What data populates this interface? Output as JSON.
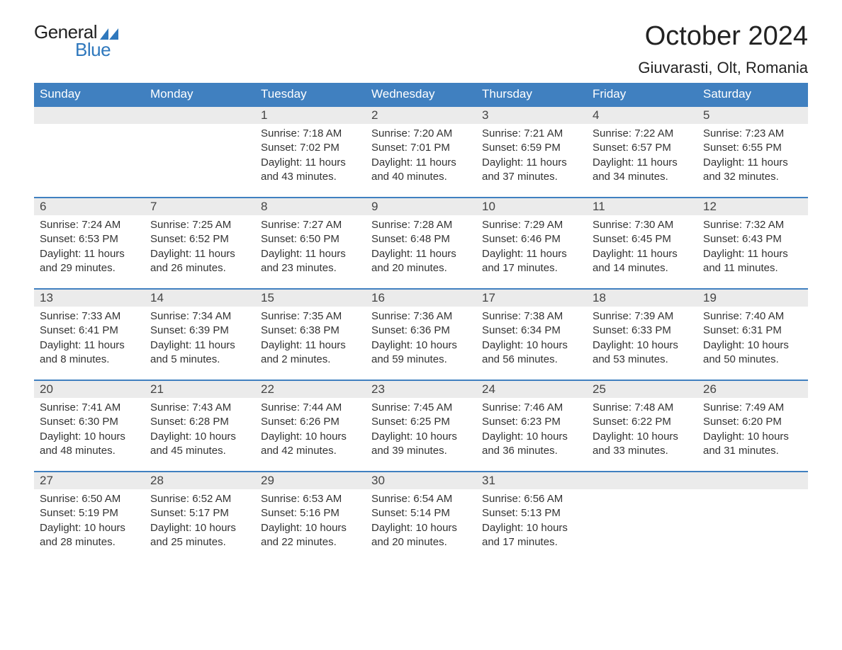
{
  "header": {
    "logo_general": "General",
    "logo_blue": "Blue",
    "month_title": "October 2024",
    "location": "Giuvarasti, Olt, Romania"
  },
  "styling": {
    "header_bg": "#4080c0",
    "header_text": "#ffffff",
    "daynum_bg": "#ebebeb",
    "daynum_border": "#4080c0",
    "body_bg": "#ffffff",
    "text_color": "#333333",
    "logo_blue_color": "#2f78bd",
    "title_fontsize": 38,
    "location_fontsize": 22,
    "dayheader_fontsize": 17,
    "cell_fontsize": 15
  },
  "weekdays": [
    "Sunday",
    "Monday",
    "Tuesday",
    "Wednesday",
    "Thursday",
    "Friday",
    "Saturday"
  ],
  "weeks": [
    [
      {
        "day": "",
        "sunrise": "",
        "sunset": "",
        "daylight": ""
      },
      {
        "day": "",
        "sunrise": "",
        "sunset": "",
        "daylight": ""
      },
      {
        "day": "1",
        "sunrise": "Sunrise: 7:18 AM",
        "sunset": "Sunset: 7:02 PM",
        "daylight": "Daylight: 11 hours and 43 minutes."
      },
      {
        "day": "2",
        "sunrise": "Sunrise: 7:20 AM",
        "sunset": "Sunset: 7:01 PM",
        "daylight": "Daylight: 11 hours and 40 minutes."
      },
      {
        "day": "3",
        "sunrise": "Sunrise: 7:21 AM",
        "sunset": "Sunset: 6:59 PM",
        "daylight": "Daylight: 11 hours and 37 minutes."
      },
      {
        "day": "4",
        "sunrise": "Sunrise: 7:22 AM",
        "sunset": "Sunset: 6:57 PM",
        "daylight": "Daylight: 11 hours and 34 minutes."
      },
      {
        "day": "5",
        "sunrise": "Sunrise: 7:23 AM",
        "sunset": "Sunset: 6:55 PM",
        "daylight": "Daylight: 11 hours and 32 minutes."
      }
    ],
    [
      {
        "day": "6",
        "sunrise": "Sunrise: 7:24 AM",
        "sunset": "Sunset: 6:53 PM",
        "daylight": "Daylight: 11 hours and 29 minutes."
      },
      {
        "day": "7",
        "sunrise": "Sunrise: 7:25 AM",
        "sunset": "Sunset: 6:52 PM",
        "daylight": "Daylight: 11 hours and 26 minutes."
      },
      {
        "day": "8",
        "sunrise": "Sunrise: 7:27 AM",
        "sunset": "Sunset: 6:50 PM",
        "daylight": "Daylight: 11 hours and 23 minutes."
      },
      {
        "day": "9",
        "sunrise": "Sunrise: 7:28 AM",
        "sunset": "Sunset: 6:48 PM",
        "daylight": "Daylight: 11 hours and 20 minutes."
      },
      {
        "day": "10",
        "sunrise": "Sunrise: 7:29 AM",
        "sunset": "Sunset: 6:46 PM",
        "daylight": "Daylight: 11 hours and 17 minutes."
      },
      {
        "day": "11",
        "sunrise": "Sunrise: 7:30 AM",
        "sunset": "Sunset: 6:45 PM",
        "daylight": "Daylight: 11 hours and 14 minutes."
      },
      {
        "day": "12",
        "sunrise": "Sunrise: 7:32 AM",
        "sunset": "Sunset: 6:43 PM",
        "daylight": "Daylight: 11 hours and 11 minutes."
      }
    ],
    [
      {
        "day": "13",
        "sunrise": "Sunrise: 7:33 AM",
        "sunset": "Sunset: 6:41 PM",
        "daylight": "Daylight: 11 hours and 8 minutes."
      },
      {
        "day": "14",
        "sunrise": "Sunrise: 7:34 AM",
        "sunset": "Sunset: 6:39 PM",
        "daylight": "Daylight: 11 hours and 5 minutes."
      },
      {
        "day": "15",
        "sunrise": "Sunrise: 7:35 AM",
        "sunset": "Sunset: 6:38 PM",
        "daylight": "Daylight: 11 hours and 2 minutes."
      },
      {
        "day": "16",
        "sunrise": "Sunrise: 7:36 AM",
        "sunset": "Sunset: 6:36 PM",
        "daylight": "Daylight: 10 hours and 59 minutes."
      },
      {
        "day": "17",
        "sunrise": "Sunrise: 7:38 AM",
        "sunset": "Sunset: 6:34 PM",
        "daylight": "Daylight: 10 hours and 56 minutes."
      },
      {
        "day": "18",
        "sunrise": "Sunrise: 7:39 AM",
        "sunset": "Sunset: 6:33 PM",
        "daylight": "Daylight: 10 hours and 53 minutes."
      },
      {
        "day": "19",
        "sunrise": "Sunrise: 7:40 AM",
        "sunset": "Sunset: 6:31 PM",
        "daylight": "Daylight: 10 hours and 50 minutes."
      }
    ],
    [
      {
        "day": "20",
        "sunrise": "Sunrise: 7:41 AM",
        "sunset": "Sunset: 6:30 PM",
        "daylight": "Daylight: 10 hours and 48 minutes."
      },
      {
        "day": "21",
        "sunrise": "Sunrise: 7:43 AM",
        "sunset": "Sunset: 6:28 PM",
        "daylight": "Daylight: 10 hours and 45 minutes."
      },
      {
        "day": "22",
        "sunrise": "Sunrise: 7:44 AM",
        "sunset": "Sunset: 6:26 PM",
        "daylight": "Daylight: 10 hours and 42 minutes."
      },
      {
        "day": "23",
        "sunrise": "Sunrise: 7:45 AM",
        "sunset": "Sunset: 6:25 PM",
        "daylight": "Daylight: 10 hours and 39 minutes."
      },
      {
        "day": "24",
        "sunrise": "Sunrise: 7:46 AM",
        "sunset": "Sunset: 6:23 PM",
        "daylight": "Daylight: 10 hours and 36 minutes."
      },
      {
        "day": "25",
        "sunrise": "Sunrise: 7:48 AM",
        "sunset": "Sunset: 6:22 PM",
        "daylight": "Daylight: 10 hours and 33 minutes."
      },
      {
        "day": "26",
        "sunrise": "Sunrise: 7:49 AM",
        "sunset": "Sunset: 6:20 PM",
        "daylight": "Daylight: 10 hours and 31 minutes."
      }
    ],
    [
      {
        "day": "27",
        "sunrise": "Sunrise: 6:50 AM",
        "sunset": "Sunset: 5:19 PM",
        "daylight": "Daylight: 10 hours and 28 minutes."
      },
      {
        "day": "28",
        "sunrise": "Sunrise: 6:52 AM",
        "sunset": "Sunset: 5:17 PM",
        "daylight": "Daylight: 10 hours and 25 minutes."
      },
      {
        "day": "29",
        "sunrise": "Sunrise: 6:53 AM",
        "sunset": "Sunset: 5:16 PM",
        "daylight": "Daylight: 10 hours and 22 minutes."
      },
      {
        "day": "30",
        "sunrise": "Sunrise: 6:54 AM",
        "sunset": "Sunset: 5:14 PM",
        "daylight": "Daylight: 10 hours and 20 minutes."
      },
      {
        "day": "31",
        "sunrise": "Sunrise: 6:56 AM",
        "sunset": "Sunset: 5:13 PM",
        "daylight": "Daylight: 10 hours and 17 minutes."
      },
      {
        "day": "",
        "sunrise": "",
        "sunset": "",
        "daylight": ""
      },
      {
        "day": "",
        "sunrise": "",
        "sunset": "",
        "daylight": ""
      }
    ]
  ]
}
